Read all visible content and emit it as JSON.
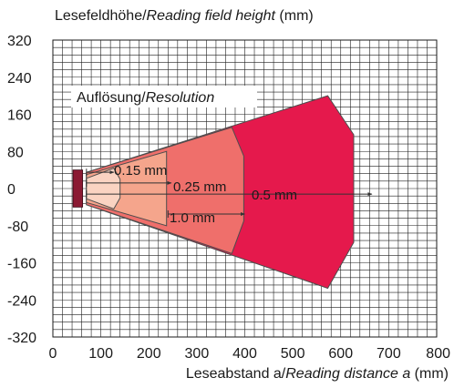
{
  "chart_data": {
    "type": "area",
    "ylabel_de": "Lesefeldhöhe/",
    "ylabel_en": "Reading field height",
    "ylabel_unit": " (mm)",
    "xlabel_de": "Leseabstand a/",
    "xlabel_en": "Reading distance a",
    "xlabel_unit": " (mm)",
    "xlim": [
      0,
      800
    ],
    "ylim": [
      -320,
      320
    ],
    "x_ticks": [
      "0",
      "100",
      "200",
      "300",
      "400",
      "500",
      "600",
      "700",
      "800"
    ],
    "y_ticks": [
      "320",
      "240",
      "160",
      "80",
      "0",
      "-80",
      "-160",
      "-240",
      "-320"
    ],
    "grid": true,
    "legend_de": "Auflösung/",
    "legend_en": "Resolution",
    "colors": {
      "zone_05": "#e5194c",
      "zone_025": "#ef6f6b",
      "zone_1": "#f5a58c",
      "zone_015": "#fad3c2",
      "device": "#8b1a33",
      "outline": "#4d4d4d"
    },
    "series": [
      {
        "name": "0.5 mm",
        "polygon": [
          [
            70,
            0
          ],
          [
            70,
            35
          ],
          [
            573,
            200
          ],
          [
            627,
            116
          ],
          [
            627,
            -116
          ],
          [
            573,
            -215
          ],
          [
            70,
            -35
          ]
        ]
      },
      {
        "name": "1.0 mm",
        "polygon": [
          [
            70,
            0
          ],
          [
            70,
            35
          ],
          [
            373,
            132
          ],
          [
            398,
            70
          ],
          [
            398,
            -70
          ],
          [
            373,
            -140
          ],
          [
            70,
            -35
          ]
        ]
      },
      {
        "name": "0.25 mm",
        "polygon": [
          [
            70,
            0
          ],
          [
            70,
            30
          ],
          [
            237,
            80
          ],
          [
            237,
            -80
          ],
          [
            70,
            -30
          ]
        ]
      },
      {
        "name": "0.15 mm",
        "polygon": [
          [
            70,
            0
          ],
          [
            70,
            22
          ],
          [
            127,
            44
          ],
          [
            140,
            20
          ],
          [
            140,
            -20
          ],
          [
            127,
            -44
          ],
          [
            70,
            -22
          ]
        ]
      }
    ],
    "ranges": [
      {
        "label": "0.15 mm",
        "x_start": 70,
        "x_end": 127,
        "y": 35
      },
      {
        "label": "0.25 mm",
        "x_start": 70,
        "x_end": 247,
        "y": 12
      },
      {
        "label": "0.5 mm",
        "x_start": 70,
        "x_end": 665,
        "y": -12
      },
      {
        "label": "1.0 mm",
        "x_start": 240,
        "x_end": 400,
        "y": -55
      }
    ],
    "device": {
      "x_start": 42,
      "x_end": 62,
      "y_top": 40,
      "y_bottom": -40
    }
  }
}
